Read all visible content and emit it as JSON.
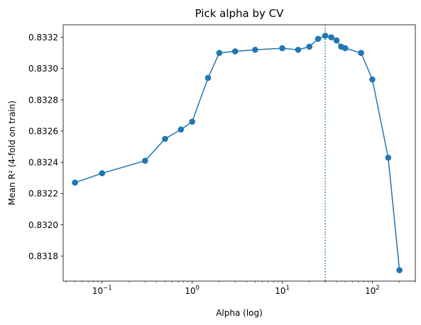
{
  "chart_data": {
    "type": "line",
    "title": "Pick alpha by CV",
    "xlabel": "Alpha (log)",
    "ylabel": "Mean R² (4-fold on train)",
    "xscale": "log",
    "xlim": [
      0.037,
      300
    ],
    "ylim": [
      0.83164,
      0.83328
    ],
    "grid": false,
    "x_ticks": [
      {
        "base": "10",
        "exp": "−1",
        "value": 0.1
      },
      {
        "base": "10",
        "exp": "0",
        "value": 1
      },
      {
        "base": "10",
        "exp": "1",
        "value": 10
      },
      {
        "base": "10",
        "exp": "2",
        "value": 100
      }
    ],
    "y_ticks": [
      "0.8318",
      "0.8320",
      "0.8322",
      "0.8324",
      "0.8326",
      "0.8328",
      "0.8330",
      "0.8332"
    ],
    "series": [
      {
        "color": "#1f77b4",
        "marker": "circle",
        "x": [
          0.05,
          0.1,
          0.3,
          0.5,
          0.75,
          1,
          1.5,
          2,
          3,
          5,
          10,
          15,
          20,
          25,
          30,
          35,
          40,
          45,
          50,
          75,
          100,
          150,
          200
        ],
        "y": [
          0.83227,
          0.83233,
          0.83241,
          0.83255,
          0.83261,
          0.83266,
          0.83294,
          0.8331,
          0.83311,
          0.83312,
          0.83313,
          0.83312,
          0.83314,
          0.83319,
          0.83321,
          0.8332,
          0.83318,
          0.83314,
          0.83313,
          0.8331,
          0.83293,
          0.83243,
          0.83171
        ]
      }
    ],
    "vline": {
      "x": 30,
      "style": "dotted",
      "color": "#1f77b4"
    }
  }
}
